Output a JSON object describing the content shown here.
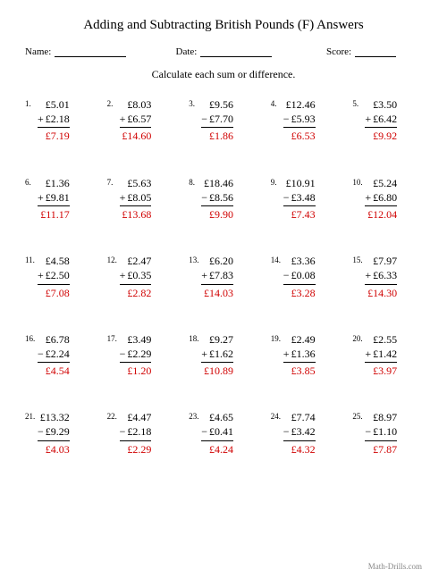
{
  "title": "Adding and Subtracting British Pounds (F) Answers",
  "labels": {
    "name": "Name:",
    "date": "Date:",
    "score": "Score:"
  },
  "instruction": "Calculate each sum or difference.",
  "footer": "Math-Drills.com",
  "colors": {
    "answer": "#d00000",
    "text": "#000000",
    "bg": "#ffffff"
  },
  "font": {
    "family": "Times New Roman",
    "title_size": 15,
    "body_size": 12,
    "num_size": 9
  },
  "problems": [
    {
      "n": "1.",
      "a": "£5.01",
      "op": "+",
      "b": "£2.18",
      "ans": "£7.19"
    },
    {
      "n": "2.",
      "a": "£8.03",
      "op": "+",
      "b": "£6.57",
      "ans": "£14.60"
    },
    {
      "n": "3.",
      "a": "£9.56",
      "op": "−",
      "b": "£7.70",
      "ans": "£1.86"
    },
    {
      "n": "4.",
      "a": "£12.46",
      "op": "−",
      "b": "£5.93",
      "ans": "£6.53"
    },
    {
      "n": "5.",
      "a": "£3.50",
      "op": "+",
      "b": "£6.42",
      "ans": "£9.92"
    },
    {
      "n": "6.",
      "a": "£1.36",
      "op": "+",
      "b": "£9.81",
      "ans": "£11.17"
    },
    {
      "n": "7.",
      "a": "£5.63",
      "op": "+",
      "b": "£8.05",
      "ans": "£13.68"
    },
    {
      "n": "8.",
      "a": "£18.46",
      "op": "−",
      "b": "£8.56",
      "ans": "£9.90"
    },
    {
      "n": "9.",
      "a": "£10.91",
      "op": "−",
      "b": "£3.48",
      "ans": "£7.43"
    },
    {
      "n": "10.",
      "a": "£5.24",
      "op": "+",
      "b": "£6.80",
      "ans": "£12.04"
    },
    {
      "n": "11.",
      "a": "£4.58",
      "op": "+",
      "b": "£2.50",
      "ans": "£7.08"
    },
    {
      "n": "12.",
      "a": "£2.47",
      "op": "+",
      "b": "£0.35",
      "ans": "£2.82"
    },
    {
      "n": "13.",
      "a": "£6.20",
      "op": "+",
      "b": "£7.83",
      "ans": "£14.03"
    },
    {
      "n": "14.",
      "a": "£3.36",
      "op": "−",
      "b": "£0.08",
      "ans": "£3.28"
    },
    {
      "n": "15.",
      "a": "£7.97",
      "op": "+",
      "b": "£6.33",
      "ans": "£14.30"
    },
    {
      "n": "16.",
      "a": "£6.78",
      "op": "−",
      "b": "£2.24",
      "ans": "£4.54"
    },
    {
      "n": "17.",
      "a": "£3.49",
      "op": "−",
      "b": "£2.29",
      "ans": "£1.20"
    },
    {
      "n": "18.",
      "a": "£9.27",
      "op": "+",
      "b": "£1.62",
      "ans": "£10.89"
    },
    {
      "n": "19.",
      "a": "£2.49",
      "op": "+",
      "b": "£1.36",
      "ans": "£3.85"
    },
    {
      "n": "20.",
      "a": "£2.55",
      "op": "+",
      "b": "£1.42",
      "ans": "£3.97"
    },
    {
      "n": "21.",
      "a": "£13.32",
      "op": "−",
      "b": "£9.29",
      "ans": "£4.03"
    },
    {
      "n": "22.",
      "a": "£4.47",
      "op": "−",
      "b": "£2.18",
      "ans": "£2.29"
    },
    {
      "n": "23.",
      "a": "£4.65",
      "op": "−",
      "b": "£0.41",
      "ans": "£4.24"
    },
    {
      "n": "24.",
      "a": "£7.74",
      "op": "−",
      "b": "£3.42",
      "ans": "£4.32"
    },
    {
      "n": "25.",
      "a": "£8.97",
      "op": "−",
      "b": "£1.10",
      "ans": "£7.87"
    }
  ]
}
